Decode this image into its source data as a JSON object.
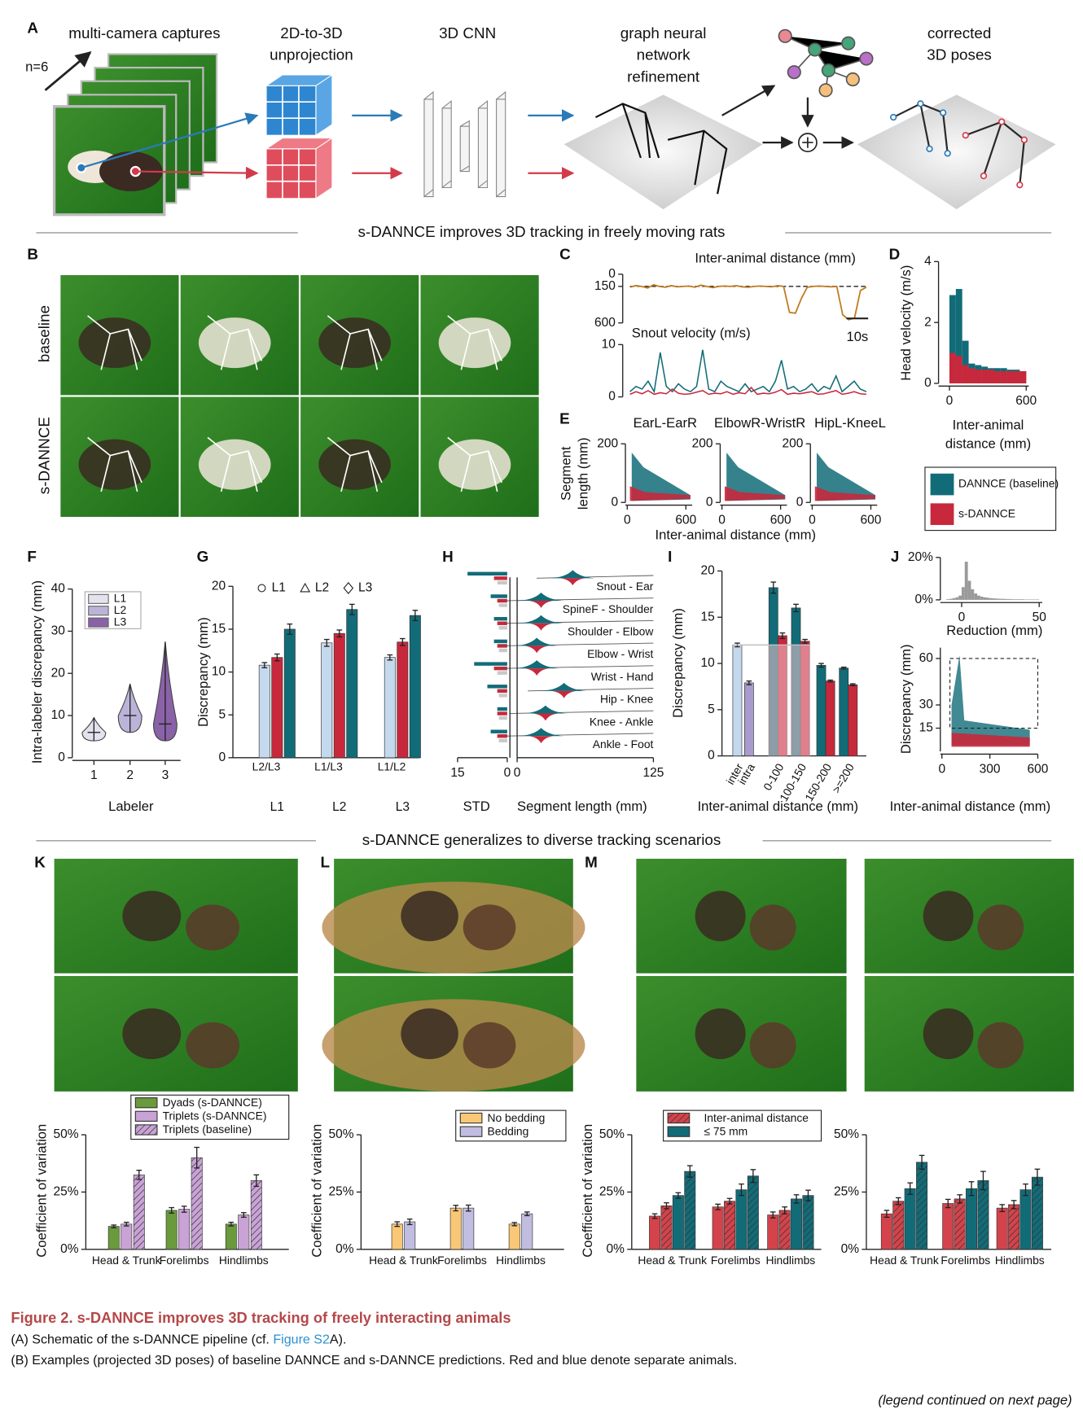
{
  "panel_a": {
    "letter": "A",
    "n_label": "n=6",
    "steps": [
      [
        "multi-camera captures"
      ],
      [
        "2D-to-3D",
        "unprojection"
      ],
      [
        "3D CNN"
      ],
      [
        "graph neural",
        "network",
        "refinement"
      ],
      [
        "corrected",
        "3D poses"
      ]
    ]
  },
  "section_1": "s-DANNCE improves 3D tracking in freely moving rats",
  "panel_b": {
    "letter": "B",
    "rows": [
      "baseline",
      "s-DANNCE"
    ]
  },
  "panel_c": {
    "letter": "C",
    "scale_bar": "10s",
    "distance": {
      "title": "Inter-animal distance (mm)",
      "ylim": [
        600,
        0
      ],
      "yticks": [
        0,
        150,
        600
      ],
      "color": "#c07a1e",
      "reference": 150,
      "values": [
        160,
        140,
        150,
        170,
        130,
        150,
        160,
        140,
        155,
        150,
        145,
        160,
        135,
        150,
        165,
        150,
        145,
        150,
        140,
        155,
        160,
        150,
        145,
        150,
        155,
        140,
        150,
        470,
        480,
        300,
        160,
        150,
        145,
        150,
        155,
        150,
        500,
        560,
        540,
        200,
        160
      ]
    },
    "velocity": {
      "title": "Snout velocity (m/s)",
      "ylim": [
        0,
        10
      ],
      "yticks": [
        0,
        10
      ],
      "series": [
        {
          "color": "#126c78",
          "values": [
            1,
            2,
            1.5,
            3,
            1,
            8.5,
            2,
            1,
            2.5,
            1.5,
            1,
            2,
            9,
            1.5,
            1,
            3,
            2,
            1.5,
            1,
            2.5,
            1,
            1.5,
            2,
            1,
            3,
            7,
            1.5,
            2,
            1,
            1.5,
            2.5,
            1,
            2,
            1.5,
            4,
            1,
            2,
            3,
            1.5,
            1
          ]
        },
        {
          "color": "#c8283c",
          "values": [
            0.5,
            1,
            0.6,
            1.2,
            0.5,
            0.8,
            0.6,
            1.5,
            0.7,
            0.5,
            0.6,
            0.9,
            1.2,
            0.5,
            0.7,
            0.6,
            1,
            0.5,
            0.8,
            0.6,
            1.8,
            0.5,
            0.7,
            0.6,
            0.9,
            1.4,
            0.5,
            0.7,
            0.6,
            0.8,
            1,
            0.5,
            0.6,
            0.9,
            1.2,
            0.5,
            0.7,
            1,
            0.6,
            0.5
          ]
        }
      ]
    }
  },
  "panel_d": {
    "letter": "D",
    "type": "histogram",
    "ylabel": "Head velocity (m/s)",
    "xlabel": [
      "Inter-animal",
      "distance (mm)"
    ],
    "xlim": [
      -50,
      620
    ],
    "xticks": [
      0,
      600
    ],
    "ylim": [
      0,
      4
    ],
    "yticks": [
      0,
      2,
      4
    ],
    "bins": [
      0,
      50,
      100,
      150,
      200,
      250,
      300,
      350,
      400,
      450,
      500,
      550,
      600
    ],
    "series": [
      {
        "name": "DANNCE (baseline)",
        "color": "#126c78",
        "values": [
          2.9,
          3.1,
          1.4,
          0.65,
          0.6,
          0.55,
          0.5,
          0.5,
          0.5,
          0.45,
          0.45,
          0.4
        ]
      },
      {
        "name": "s-DANNCE",
        "color": "#c8283c",
        "values": [
          1.0,
          0.9,
          0.6,
          0.5,
          0.45,
          0.45,
          0.45,
          0.4,
          0.4,
          0.4,
          0.4,
          0.4
        ]
      }
    ]
  },
  "panel_e": {
    "letter": "E",
    "ylabel": [
      "Segment",
      "length (mm)"
    ],
    "titles": [
      "EarL-EarR",
      "ElbowR-WristR",
      "HipL-KneeL"
    ],
    "xlim": [
      0,
      600
    ],
    "xticks": [
      0,
      600
    ],
    "ylim": [
      0,
      200
    ],
    "yticks": [
      0,
      200
    ],
    "xlabel": "Inter-animal distance (mm)"
  },
  "panel_f": {
    "letter": "F",
    "type": "violin",
    "ylabel": "Intra-labeler discrepancy (mm)",
    "xlabel": "Labeler",
    "categories": [
      "1",
      "2",
      "3"
    ],
    "ylim": [
      0,
      40
    ],
    "yticks": [
      0,
      10,
      20,
      30,
      40
    ],
    "series": [
      {
        "name": "L1",
        "color": "#e4e2ee"
      },
      {
        "name": "L2",
        "color": "#bcb4d8"
      },
      {
        "name": "L3",
        "color": "#8a62a8"
      }
    ],
    "medians": [
      6,
      10,
      8
    ],
    "mins": [
      4,
      6,
      4
    ],
    "maxs": [
      9.5,
      17.5,
      27.5
    ]
  },
  "panel_g": {
    "letter": "G",
    "type": "bar",
    "ylabel": "Discrepancy (mm)",
    "categories": [
      "L1",
      "L2",
      "L3"
    ],
    "pairs": [
      "L2/L3",
      "L1/L3",
      "L1/L2"
    ],
    "legend": [
      "L1",
      "L2",
      "L3"
    ],
    "ylim": [
      0,
      20
    ],
    "yticks": [
      0,
      5,
      10,
      15,
      20
    ],
    "series": [
      {
        "color": "#c5d9ee",
        "values": [
          10.8,
          13.4,
          11.7
        ],
        "errors": [
          0.3,
          0.4,
          0.3
        ]
      },
      {
        "color": "#c8283c",
        "values": [
          11.7,
          14.5,
          13.5
        ],
        "errors": [
          0.4,
          0.4,
          0.4
        ]
      },
      {
        "color": "#126c78",
        "values": [
          15,
          17.3,
          16.6
        ],
        "errors": [
          0.6,
          0.6,
          0.6
        ]
      }
    ]
  },
  "panel_h": {
    "letter": "H",
    "segments": [
      "Snout - Ear",
      "SpineF - Shoulder",
      "Shoulder - Elbow",
      "Elbow - Wrist",
      "Wrist - Hand",
      "Hip - Knee",
      "Knee - Ankle",
      "Ankle - Foot"
    ],
    "std_xlim": [
      15,
      0
    ],
    "std_xticks": [
      15,
      0
    ],
    "length_xlim": [
      0,
      125
    ],
    "length_xticks": [
      0,
      125
    ],
    "std_label": "STD",
    "length_label": "Segment length (mm)",
    "std": [
      {
        "color": "#126c78",
        "values": [
          12,
          5,
          4,
          4,
          10,
          6,
          3,
          5
        ]
      },
      {
        "color": "#c8283c",
        "values": [
          4,
          3,
          3,
          3,
          4,
          3,
          3,
          3
        ]
      },
      {
        "color": "#c9c9c9",
        "values": [
          3,
          2.5,
          2.5,
          2.5,
          3,
          2.5,
          2.5,
          2.5
        ]
      }
    ],
    "lengths": [
      51,
      22,
      22,
      18,
      18,
      43,
      26,
      22
    ]
  },
  "panel_i": {
    "letter": "I",
    "type": "bar",
    "ylabel": "Discrepancy (mm)",
    "xlabel": "Inter-animal distance (mm)",
    "categories": [
      "inter",
      "intra",
      "0-100",
      "100-150",
      "150-200",
      ">=200"
    ],
    "ylim": [
      0,
      20
    ],
    "yticks": [
      0,
      5,
      10,
      15,
      20
    ],
    "series": [
      {
        "color": "#c5d9ee",
        "values": [
          12,
          null,
          null,
          null,
          null,
          null
        ],
        "errors": [
          0.2,
          null,
          null,
          null,
          null,
          null
        ]
      },
      {
        "color": "#a99ccc",
        "values": [
          null,
          7.9,
          null,
          null,
          null,
          null
        ],
        "errors": [
          null,
          0.2,
          null,
          null,
          null,
          null
        ]
      },
      {
        "color": "#126c78",
        "values": [
          null,
          null,
          18.2,
          16,
          9.8,
          9.5
        ],
        "errors": [
          null,
          null,
          0.6,
          0.4,
          0.2,
          0.1
        ]
      },
      {
        "color": "#c8283c",
        "values": [
          null,
          null,
          13,
          12.4,
          8.1,
          7.7
        ],
        "errors": [
          null,
          null,
          0.3,
          0.2,
          0.1,
          0.1
        ]
      }
    ]
  },
  "panel_j": {
    "letter": "J",
    "hist": {
      "type": "histogram",
      "xlim": [
        -12,
        52
      ],
      "xticks": [
        0,
        50
      ],
      "ylim": [
        0,
        20
      ],
      "yticks": [
        {
          "value": 0,
          "label": "0%"
        },
        {
          "value": 20,
          "label": "20%"
        }
      ],
      "xlabel": "Reduction (mm)",
      "color": "#9a9a9a",
      "bins": [
        -10,
        -8,
        -6,
        -4,
        -2,
        0,
        2,
        4,
        6,
        8,
        10,
        12,
        14,
        16,
        18,
        20,
        22,
        24,
        26,
        28,
        30,
        32,
        34,
        36,
        38,
        40,
        42,
        44,
        46,
        48,
        50
      ],
      "values": [
        0.3,
        0.5,
        0.8,
        1.2,
        2,
        6,
        18,
        9,
        5,
        3,
        2,
        1.5,
        1.2,
        1,
        0.8,
        0.7,
        0.6,
        0.5,
        0.5,
        0.4,
        0.4,
        0.3,
        0.3,
        0.3,
        0.3,
        0.2,
        0.2,
        0.2,
        0.2,
        0.2
      ]
    },
    "scatter": {
      "ylabel": "Discrepancy (mm)",
      "xlabel": "Inter-animal distance (mm)",
      "xlim": [
        -10,
        600
      ],
      "xticks": [
        0,
        300,
        600
      ],
      "ylim": [
        0,
        67
      ],
      "yticks": [
        15,
        30,
        60
      ],
      "box": {
        "x": [
          50,
          600
        ],
        "y": [
          15,
          60
        ]
      }
    }
  },
  "section_2": "s-DANNCE generalizes to diverse tracking scenarios",
  "panel_k": {
    "letter": "K",
    "type": "bar",
    "ylabel": "Coefficient of variation",
    "categories": [
      "Head & Trunk",
      "Forelimbs",
      "Hindlimbs"
    ],
    "ylim": [
      0,
      50
    ],
    "yticks": [
      {
        "value": 0,
        "label": "0%"
      },
      {
        "value": 25,
        "label": "25%"
      },
      {
        "value": 50,
        "label": "50%"
      }
    ],
    "series": [
      {
        "name": "Dyads (s-DANNCE)",
        "color": "#6a9a3c",
        "values": [
          10,
          17,
          11
        ],
        "errors": [
          0.6,
          1.2,
          0.8
        ]
      },
      {
        "name": "Triplets (s-DANNCE)",
        "color": "#c9a2d6",
        "values": [
          11,
          17.5,
          15
        ],
        "errors": [
          0.8,
          1.3,
          1
        ]
      },
      {
        "name": "Triplets (baseline)",
        "color": "#c9a2d6",
        "hatch": true,
        "values": [
          32.5,
          40,
          30
        ],
        "errors": [
          2,
          4.5,
          2.5
        ]
      }
    ]
  },
  "panel_l": {
    "letter": "L",
    "type": "bar",
    "ylabel": "Coefficient of variation",
    "categories": [
      "Head & Trunk",
      "Forelimbs",
      "Hindlimbs"
    ],
    "ylim": [
      0,
      50
    ],
    "yticks": [
      {
        "value": 0,
        "label": "0%"
      },
      {
        "value": 25,
        "label": "25%"
      },
      {
        "value": 50,
        "label": "50%"
      }
    ],
    "series": [
      {
        "name": "No bedding",
        "color": "#f9c776",
        "values": [
          11,
          18,
          11
        ],
        "errors": [
          1,
          1.2,
          0.7
        ]
      },
      {
        "name": "Bedding",
        "color": "#c0bde0",
        "values": [
          12,
          18,
          15.5
        ],
        "errors": [
          1.2,
          1.3,
          0.8
        ]
      }
    ]
  },
  "panel_m": {
    "letter": "M",
    "type": "bar",
    "ylabel": "Coefficient of variation",
    "legend": [
      "Inter-animal distance",
      "≤ 75 mm"
    ],
    "charts": [
      {
        "categories": [
          "Head & Trunk",
          "Forelimbs",
          "Hindlimbs"
        ],
        "ylim": [
          0,
          50
        ],
        "yticks": [
          {
            "value": 0,
            "label": "0%"
          },
          {
            "value": 25,
            "label": "25%"
          },
          {
            "value": 50,
            "label": "50%"
          }
        ],
        "series": [
          {
            "color": "#d4434b",
            "values": [
              14.5,
              18.5,
              15
            ],
            "errors": [
              1,
              1.2,
              1.3
            ]
          },
          {
            "color": "#d4434b",
            "hatch": true,
            "values": [
              19,
              21,
              17
            ],
            "errors": [
              1.3,
              1.2,
              1.5
            ]
          },
          {
            "color": "#126c78",
            "values": [
              23.5,
              26,
              22
            ],
            "errors": [
              1.2,
              2.5,
              1.8
            ]
          },
          {
            "color": "#126c78",
            "hatch": true,
            "values": [
              34,
              32,
              23.5
            ],
            "errors": [
              2.5,
              2.8,
              2.3
            ]
          }
        ]
      },
      {
        "categories": [
          "Head & Trunk",
          "Forelimbs",
          "Hindlimbs"
        ],
        "ylim": [
          0,
          50
        ],
        "yticks": [
          {
            "value": 0,
            "label": "0%"
          },
          {
            "value": 25,
            "label": "25%"
          },
          {
            "value": 50,
            "label": "50%"
          }
        ],
        "series": [
          {
            "color": "#d4434b",
            "values": [
              15.5,
              20,
              18
            ],
            "errors": [
              1.5,
              1.8,
              1.5
            ]
          },
          {
            "color": "#d4434b",
            "hatch": true,
            "values": [
              21,
              22,
              19.5
            ],
            "errors": [
              1.5,
              1.8,
              1.8
            ]
          },
          {
            "color": "#126c78",
            "values": [
              26.5,
              26.5,
              26
            ],
            "errors": [
              2.5,
              3,
              2.5
            ]
          },
          {
            "color": "#126c78",
            "hatch": true,
            "values": [
              38,
              30,
              31.5
            ],
            "errors": [
              3,
              4,
              3.5
            ]
          }
        ]
      }
    ]
  },
  "caption": {
    "title": "Figure 2. s-DANNCE improves 3D tracking of freely interacting animals",
    "lines": [
      [
        "(A) Schematic of the s-DANNCE pipeline (cf. ",
        "Figure S2",
        "A)."
      ],
      [
        "(B) Examples (projected 3D poses) of baseline DANNCE and s-DANNCE predictions. Red and blue denote separate animals."
      ]
    ],
    "continued": "(legend continued on next page)"
  }
}
